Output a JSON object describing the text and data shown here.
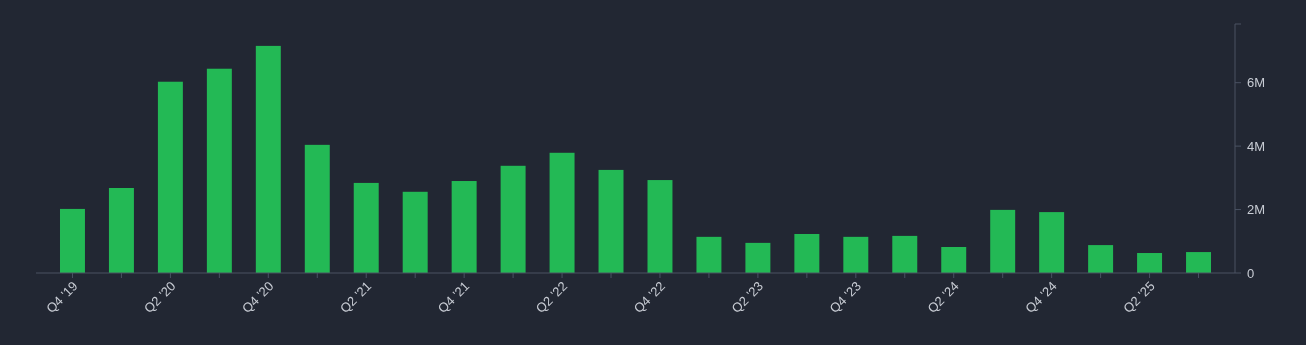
{
  "chart_data": {
    "type": "bar",
    "categories": [
      "Q4 '19",
      null,
      "Q2 '20",
      null,
      "Q4 '20",
      null,
      "Q2 '21",
      null,
      "Q4 '21",
      null,
      "Q2 '22",
      null,
      "Q4 '22",
      null,
      "Q2 '23",
      null,
      "Q4 '23",
      null,
      "Q2 '24",
      null,
      "Q4 '24",
      null,
      "Q2 '25",
      null
    ],
    "values": [
      2.02,
      2.68,
      6.03,
      6.44,
      7.16,
      4.04,
      2.84,
      2.56,
      2.9,
      3.38,
      3.79,
      3.25,
      2.93,
      1.14,
      0.95,
      1.23,
      1.14,
      1.17,
      0.82,
      1.99,
      1.92,
      0.88,
      0.63,
      0.66
    ],
    "color": "#23b955",
    "ylim": [
      0,
      7.85
    ],
    "yticks": [
      {
        "value": 0,
        "label": "0"
      },
      {
        "value": 2,
        "label": "2M"
      },
      {
        "value": 4,
        "label": "4M"
      },
      {
        "value": 6,
        "label": "6M"
      },
      {
        "value": 7.85,
        "label": null
      }
    ],
    "grid": false
  }
}
